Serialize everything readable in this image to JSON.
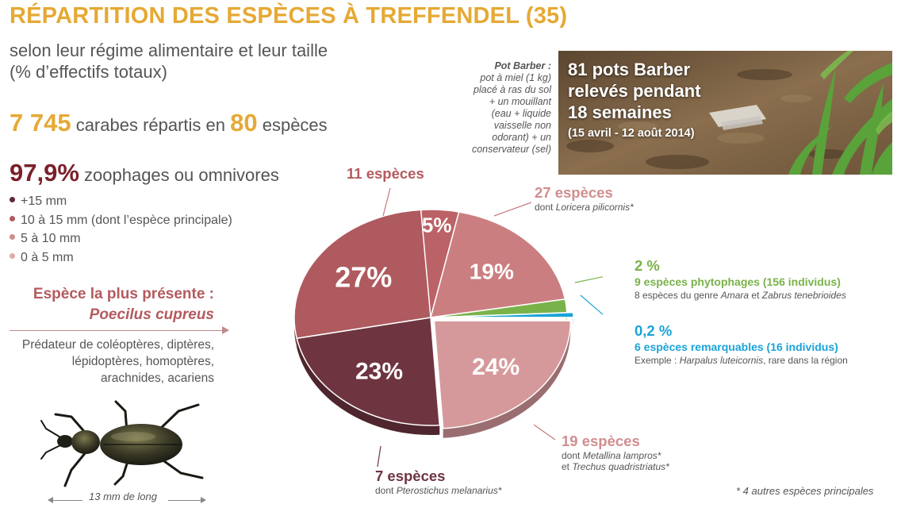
{
  "title": "RÉPARTITION DES ESPÈCES À TREFFENDEL (35)",
  "subtitle_line1": "selon leur régime alimentaire et leur taille",
  "subtitle_line2": "(% d’effectifs totaux)",
  "stat_carabes": {
    "count": "7 745",
    "text_mid": " carabes répartis en ",
    "species": "80",
    "text_end": " espèces"
  },
  "stat_zoophages": {
    "value": "97,9%",
    "text": " zoophages ou omnivores"
  },
  "legend": [
    {
      "label": "+15 mm",
      "color": "#5e2a35"
    },
    {
      "label": "10 à 15 mm (dont l’espèce principale)",
      "color": "#b05b60"
    },
    {
      "label": "5 à 10 mm",
      "color": "#d18d8f"
    },
    {
      "label": "0 à 5 mm",
      "color": "#e0a9aa"
    }
  ],
  "main_species": {
    "heading": "Espèce la plus présente :",
    "name": "Poecilus cupreus"
  },
  "predator": {
    "line1": "Prédateur de coléoptères, diptères,",
    "line2": "lépidoptères, homoptères,",
    "line3": "arachnides, acariens"
  },
  "beetle_size": "13 mm de long",
  "pot_barber": {
    "heading": "Pot Barber :",
    "lines": [
      "pot à miel (1 kg)",
      "placé à ras du sol",
      "+ un mouillant",
      "(eau + liquide",
      "vaisselle non",
      "odorant) + un",
      "conservateur (sel)"
    ]
  },
  "photo": {
    "line1": "81 pots Barber",
    "line2": "relevés pendant",
    "line3": "18 semaines",
    "line4": "(15 avril - 12 août 2014)"
  },
  "annotations": {
    "s11": {
      "title": "11 espèces"
    },
    "s27": {
      "title": "27 espèces",
      "prefix": "dont ",
      "italic": "Loricera pilicornis*"
    },
    "green": {
      "pct": "2 %",
      "title": "9 espèces phytophages (156 individus)",
      "prefix": "8 espèces du genre ",
      "italic1": "Amara",
      "mid": " et ",
      "italic2": "Zabrus tenebrioides"
    },
    "blue": {
      "pct": "0,2 %",
      "title": "6 espèces remarquables (16 individus)",
      "prefix": "Exemple : ",
      "italic": "Harpalus luteicornis",
      "suffix": ", rare dans la région"
    },
    "s19": {
      "title": "19 espèces",
      "prefix1": "dont ",
      "italic1": "Metallina lampros*",
      "prefix2": "et ",
      "italic2": "Trechus quadristriatus*"
    },
    "s7": {
      "title": "7 espèces",
      "prefix": "dont ",
      "italic": "Pterostichus melanarius*"
    }
  },
  "footnote": "* 4 autres espèces principales",
  "chart_data": {
    "type": "pie",
    "title": "RÉPARTITION DES ESPÈCES À TREFFENDEL (35)",
    "slices": [
      {
        "label": "5%",
        "value": 5,
        "color": "#bb6266"
      },
      {
        "label": "19%",
        "value": 19,
        "color": "#cb7e80"
      },
      {
        "label": "2 %",
        "value": 2,
        "color": "#7ab24a"
      },
      {
        "label": "0,2 %",
        "value": 0.2,
        "color": "#1aa3d8"
      },
      {
        "label": "24%",
        "value": 24,
        "color": "#d6999b"
      },
      {
        "label": "23%",
        "value": 23,
        "color": "#6e3540"
      },
      {
        "label": "27%",
        "value": 27,
        "color": "#ae5a5e"
      }
    ]
  }
}
